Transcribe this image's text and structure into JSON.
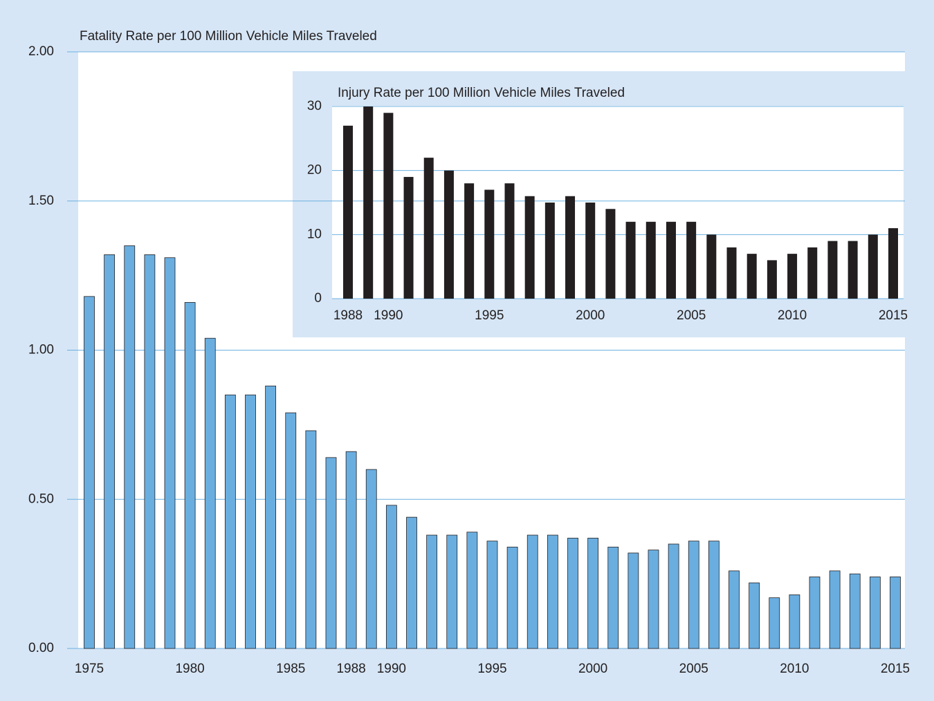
{
  "chart_data": [
    {
      "type": "bar",
      "title": "Fatality Rate per 100 Million Vehicle Miles Traveled",
      "categories": [
        "1975",
        null,
        null,
        null,
        null,
        "1980",
        null,
        null,
        null,
        null,
        "1985",
        null,
        null,
        "1988",
        null,
        "1990",
        null,
        null,
        null,
        null,
        "1995",
        null,
        null,
        null,
        null,
        "2000",
        null,
        null,
        null,
        null,
        "2005",
        null,
        null,
        null,
        null,
        "2010",
        null,
        null,
        null,
        null,
        "2015"
      ],
      "values": [
        1.18,
        1.32,
        1.35,
        1.32,
        1.31,
        1.16,
        1.04,
        0.85,
        0.85,
        0.88,
        0.79,
        0.73,
        0.64,
        0.66,
        0.6,
        0.48,
        0.44,
        0.38,
        0.38,
        0.39,
        0.36,
        0.34,
        0.38,
        0.38,
        0.37,
        0.37,
        0.34,
        0.32,
        0.33,
        0.35,
        0.36,
        0.36,
        0.26,
        0.22,
        0.17,
        0.18,
        0.24,
        0.26,
        0.25,
        0.24,
        0.24
      ],
      "color": "#6aaee0",
      "ylim": [
        0,
        2
      ],
      "yticks": [
        {
          "value": 0,
          "label": "0.00"
        },
        {
          "value": 0.5,
          "label": "0.50"
        },
        {
          "value": 1,
          "label": "1.00"
        },
        {
          "value": 1.5,
          "label": "1.50"
        },
        {
          "value": 2,
          "label": "2.00"
        }
      ],
      "grid": true
    },
    {
      "type": "bar",
      "title": "Injury Rate per 100 Million Vehicle Miles Traveled",
      "categories": [
        "1988",
        null,
        "1990",
        null,
        null,
        null,
        null,
        "1995",
        null,
        null,
        null,
        null,
        "2000",
        null,
        null,
        null,
        null,
        "2005",
        null,
        null,
        null,
        null,
        "2010",
        null,
        null,
        null,
        null,
        "2015"
      ],
      "values": [
        27,
        30,
        29,
        19,
        22,
        20,
        18,
        17,
        18,
        16,
        15,
        16,
        15,
        14,
        12,
        12,
        12,
        12,
        10,
        8,
        7,
        6,
        7,
        8,
        9,
        9,
        10,
        11
      ],
      "color": "#231f20",
      "ylim": [
        0,
        30
      ],
      "yticks": [
        0,
        10,
        20,
        30
      ],
      "grid": true
    }
  ]
}
